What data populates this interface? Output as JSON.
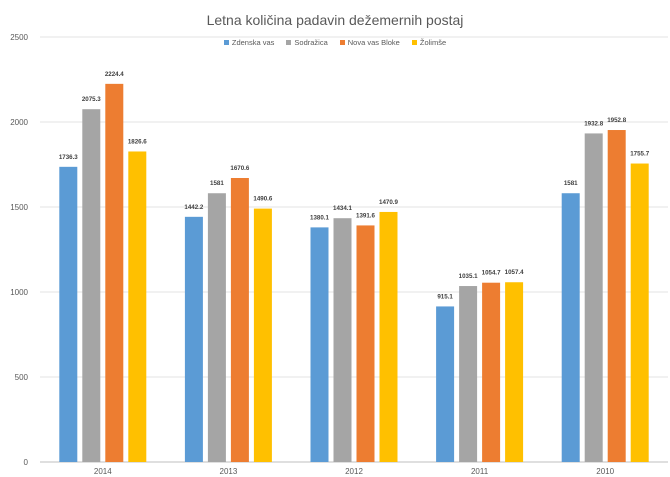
{
  "chart_data": {
    "type": "bar",
    "title": "Letna količina padavin dežemernih postaj",
    "xlabel": "",
    "ylabel": "",
    "categories": [
      "2014",
      "2013",
      "2012",
      "2011",
      "2010"
    ],
    "series": [
      {
        "name": "Zdenska vas",
        "color": "#5b9bd5",
        "values": [
          1736.3,
          1442.2,
          1380.1,
          915.1,
          1581
        ],
        "labels": [
          "1736.3",
          "1442.2",
          "1380.1",
          "915.1",
          "1581"
        ]
      },
      {
        "name": "Sodražica",
        "color": "#a5a5a5",
        "values": [
          2075.3,
          1581,
          1434.1,
          1035.1,
          1932.8
        ],
        "labels": [
          "2075.3",
          "1581",
          "1434.1",
          "1035.1",
          "1932.8"
        ]
      },
      {
        "name": "Nova vas Bloke",
        "color": "#ed7d31",
        "values": [
          2224.4,
          1670.6,
          1391.6,
          1054.7,
          1952.8
        ],
        "labels": [
          "2224.4",
          "1670.6",
          "1391.6",
          "1054.7",
          "1952.8"
        ]
      },
      {
        "name": "Žolimše",
        "color": "#ffc000",
        "values": [
          1826.6,
          1490.6,
          1470.9,
          1057.4,
          1755.7
        ],
        "labels": [
          "1826.6",
          "1490.6",
          "1470.9",
          "1057.4",
          "1755.7"
        ]
      }
    ],
    "ylim": [
      0,
      2500
    ],
    "yticks": [
      "0",
      "500",
      "1000",
      "1500",
      "2000",
      "2500"
    ],
    "grid": true,
    "legend_position": "top"
  }
}
